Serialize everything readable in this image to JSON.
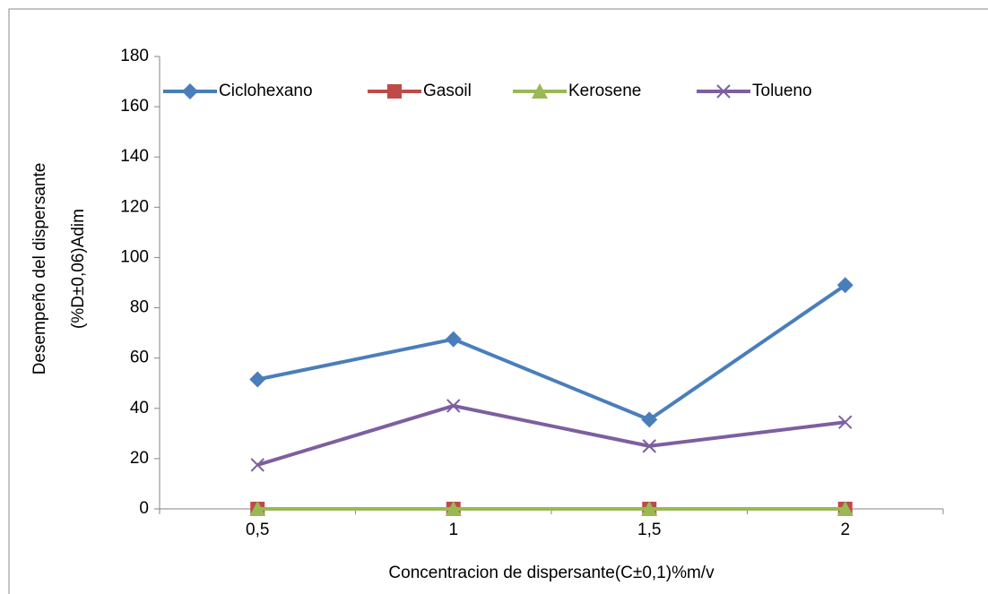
{
  "chart_data": {
    "type": "line",
    "xlabel": "Concentracion de dispersante(C±0,1)%m/v",
    "ylabel": [
      "Desempeño del dispersante",
      "(%D±0,06)Adim"
    ],
    "categories": [
      "0,5",
      "1",
      "1,5",
      "2"
    ],
    "series": [
      {
        "name": "Ciclohexano",
        "color": "#4a7ebb",
        "marker": "diamond",
        "values": [
          51.5,
          67.5,
          35.5,
          89
        ]
      },
      {
        "name": "Gasoil",
        "color": "#be4b48",
        "marker": "square",
        "values": [
          0,
          0,
          0,
          0
        ]
      },
      {
        "name": "Kerosene",
        "color": "#98b954",
        "marker": "triangle",
        "values": [
          0,
          0,
          0,
          0
        ]
      },
      {
        "name": "Tolueno",
        "color": "#7d5fa0",
        "marker": "x",
        "values": [
          17.5,
          41,
          25,
          34.5
        ]
      }
    ],
    "ylim": [
      0,
      180
    ],
    "yticks": [
      0,
      20,
      40,
      60,
      80,
      100,
      120,
      140,
      160,
      180
    ],
    "grid": false,
    "legend": "top"
  }
}
